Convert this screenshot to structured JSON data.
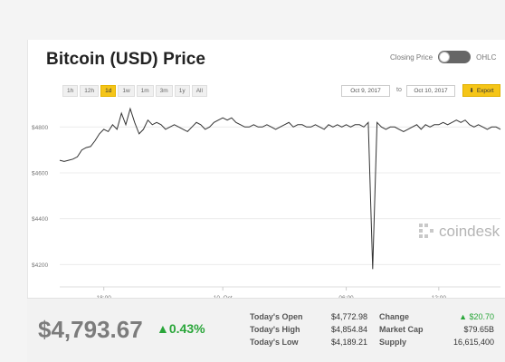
{
  "widget": {
    "title": "Bitcoin (USD) Price",
    "toggle": {
      "left_label": "Closing Price",
      "right_label": "OHLC"
    },
    "ranges": [
      "1h",
      "12h",
      "1d",
      "1w",
      "1m",
      "3m",
      "1y",
      "All"
    ],
    "active_range": "1d",
    "date_from": "Oct 9, 2017",
    "date_to_label": "to",
    "date_to": "Oct 10, 2017",
    "export_label": "Export",
    "watermark": "coindesk"
  },
  "chart_data": {
    "type": "line",
    "x_tick_labels": [
      "18:00",
      "10. Oct",
      "06:00",
      "12:00"
    ],
    "y_tick_labels": [
      "$4200",
      "$4400",
      "$4600",
      "$4800"
    ],
    "ylim": [
      4150,
      4900
    ],
    "series": [
      {
        "values": [
          4655,
          4650,
          4655,
          4660,
          4670,
          4700,
          4710,
          4715,
          4740,
          4770,
          4790,
          4780,
          4810,
          4790,
          4860,
          4810,
          4880,
          4820,
          4770,
          4790,
          4830,
          4810,
          4820,
          4810,
          4790,
          4800,
          4810,
          4800,
          4790,
          4780,
          4800,
          4820,
          4810,
          4790,
          4800,
          4820,
          4830,
          4840,
          4830,
          4840,
          4820,
          4810,
          4800,
          4800,
          4810,
          4800,
          4800,
          4810,
          4800,
          4790,
          4800,
          4810,
          4820,
          4800,
          4810,
          4810,
          4800,
          4800,
          4810,
          4800,
          4790,
          4810,
          4800,
          4810,
          4800,
          4810,
          4800,
          4810,
          4810,
          4800,
          4820,
          4180,
          4820,
          4800,
          4790,
          4800,
          4800,
          4790,
          4780,
          4790,
          4800,
          4810,
          4790,
          4810,
          4800,
          4810,
          4810,
          4820,
          4810,
          4820,
          4830,
          4820,
          4830,
          4810,
          4800,
          4810,
          4800,
          4790,
          4800,
          4800,
          4790
        ]
      }
    ]
  },
  "stats": {
    "price": "$4,793.67",
    "change_pct": "▲0.43%",
    "open_label": "Today's Open",
    "open_value": "$4,772.98",
    "high_label": "Today's High",
    "high_value": "$4,854.84",
    "low_label": "Today's Low",
    "low_value": "$4,189.21",
    "change_label": "Change",
    "change_value": "▲ $20.70",
    "cap_label": "Market Cap",
    "cap_value": "$79.65B",
    "supply_label": "Supply",
    "supply_value": "16,615,400"
  },
  "colors": {
    "line": "#333333",
    "accent": "#f5c518",
    "positive": "#2aa63a"
  }
}
